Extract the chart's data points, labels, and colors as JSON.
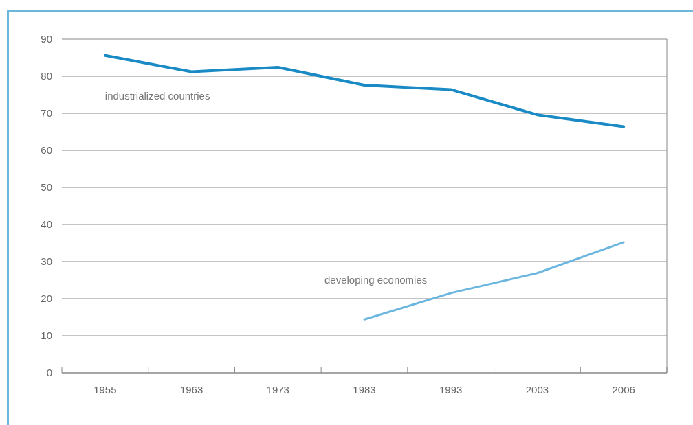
{
  "chart_data": {
    "type": "line",
    "categories": [
      "1955",
      "1963",
      "1973",
      "1983",
      "1993",
      "2003",
      "2006"
    ],
    "series": [
      {
        "name": "industrialized countries",
        "color": "#1a8ac4",
        "values": [
          85.6,
          81.2,
          82.4,
          77.6,
          76.4,
          69.6,
          66.4
        ]
      },
      {
        "name": "developing economies",
        "color": "#6bb6e0",
        "values": [
          null,
          null,
          null,
          14.4,
          21.5,
          26.9,
          35.2
        ]
      }
    ],
    "ylim": [
      0,
      90
    ],
    "yticks": [
      0,
      10,
      20,
      30,
      40,
      50,
      60,
      70,
      80,
      90
    ],
    "grid": "y"
  }
}
